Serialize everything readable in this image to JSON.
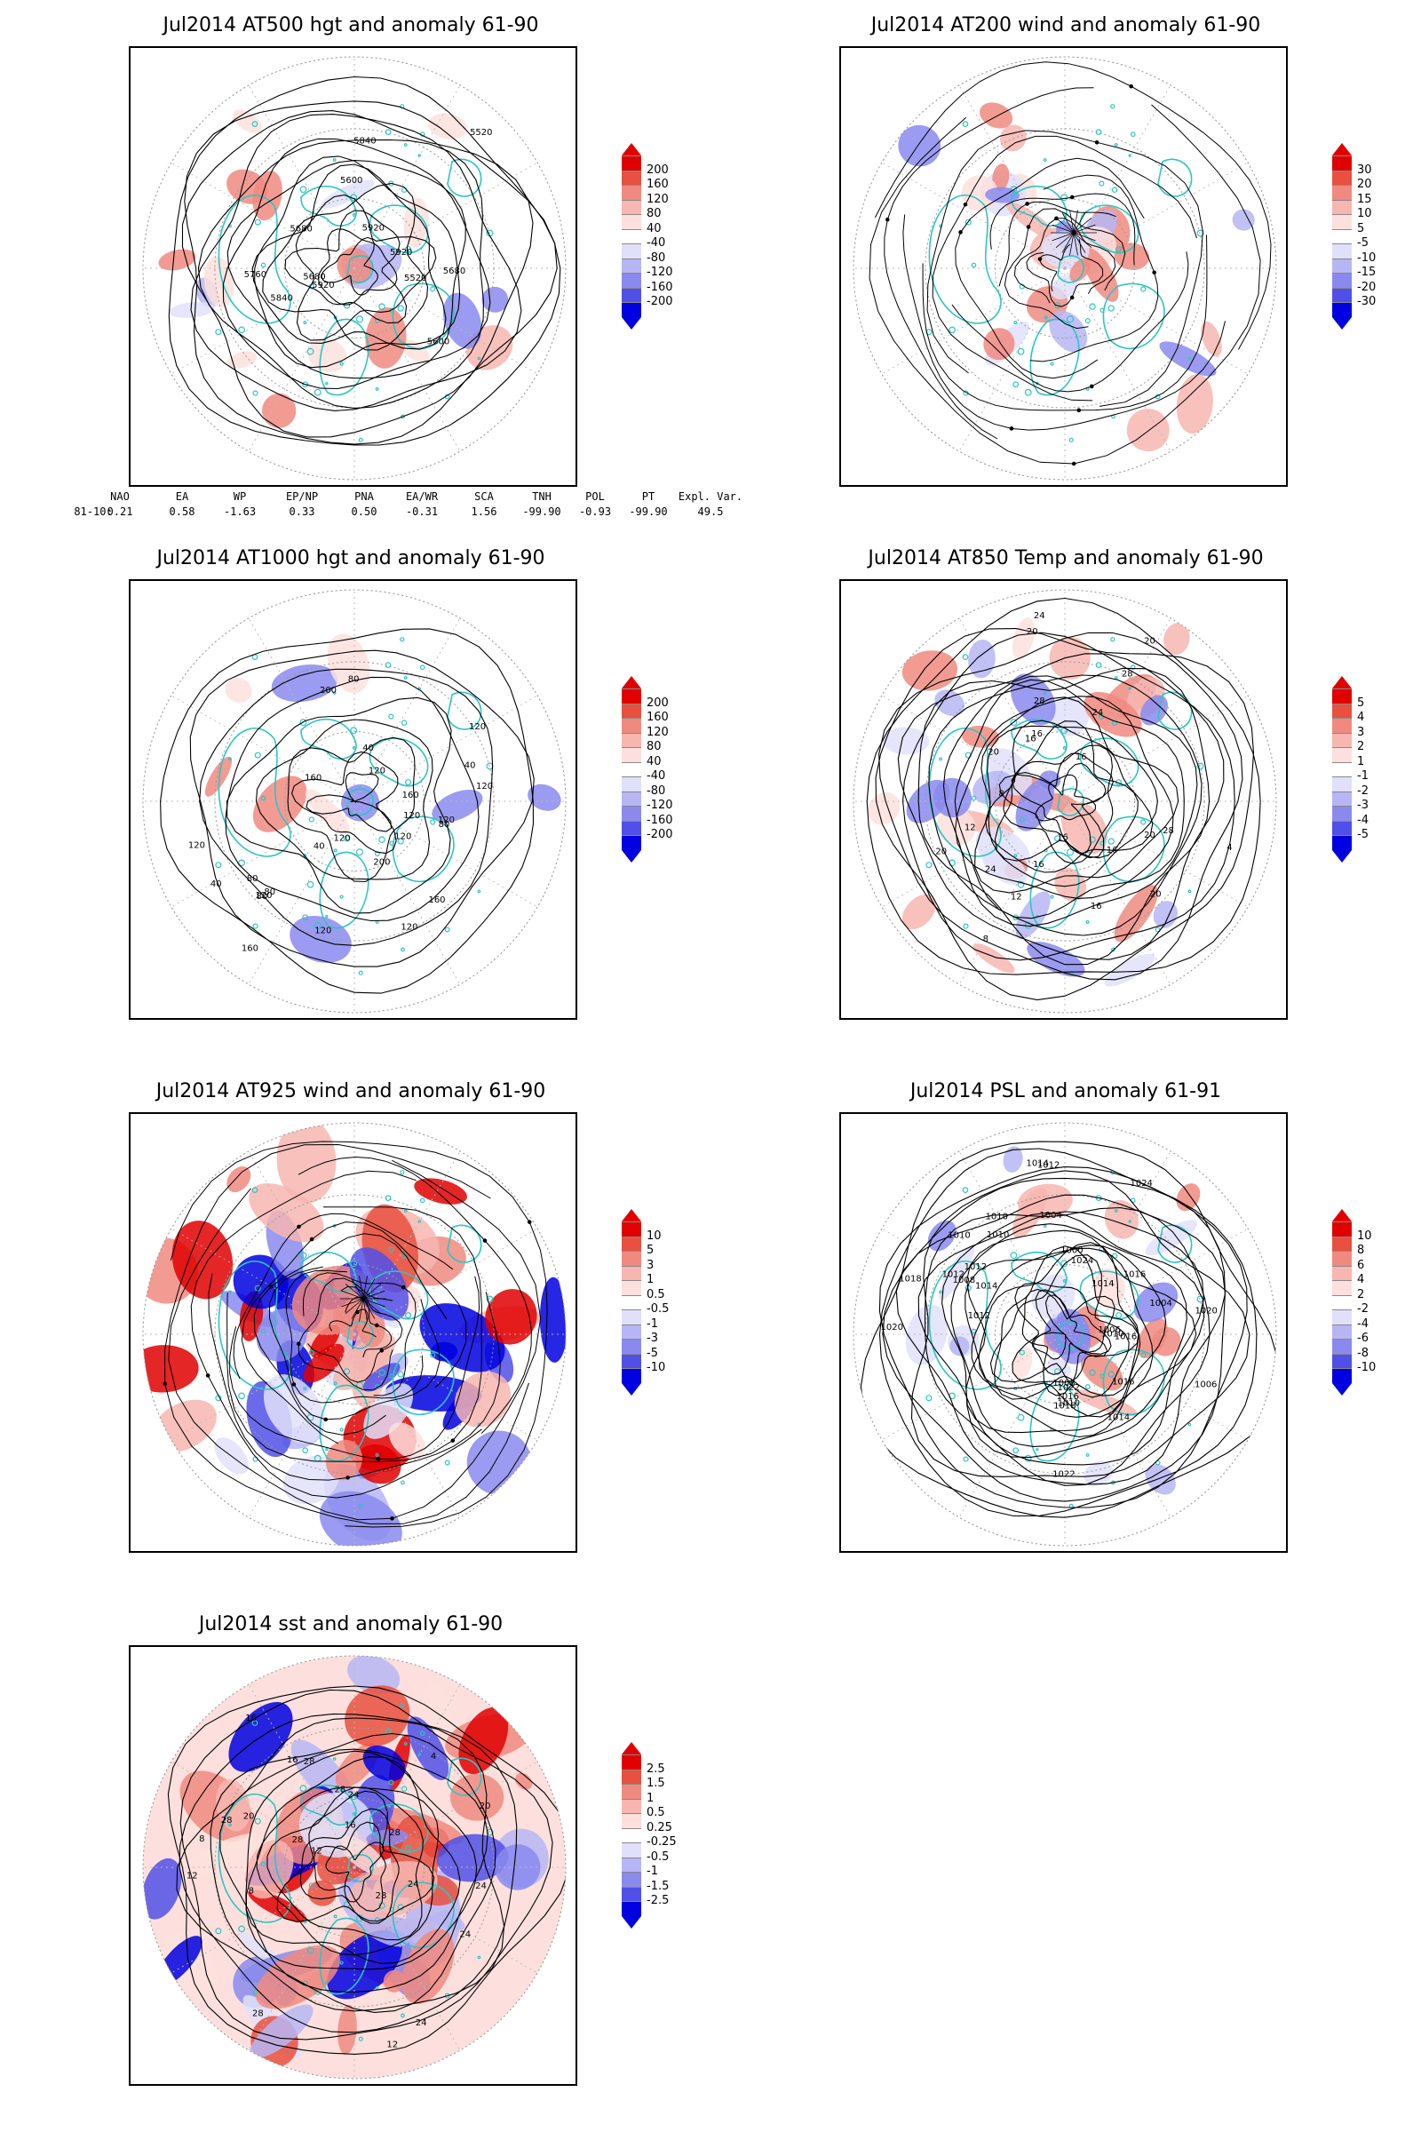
{
  "panels": [
    {
      "id": "p1",
      "title": "Jul2014 AT500 hgt and anomaly 61-90",
      "colorbar": [
        "200",
        "160",
        "120",
        "80",
        "40",
        "-40",
        "-80",
        "-120",
        "-160",
        "-200"
      ],
      "contour_labels": [
        "5680",
        "5680",
        "5600",
        "5920",
        "5520",
        "5520",
        "5600",
        "5680",
        "5840",
        "5920",
        "5760",
        "5840",
        "5920"
      ]
    },
    {
      "id": "p2",
      "title": "Jul2014 AT200 wind and anomaly 61-90",
      "colorbar": [
        "30",
        "20",
        "15",
        "10",
        "5",
        "-5",
        "-10",
        "-15",
        "-20",
        "-30"
      ],
      "contour_labels": []
    },
    {
      "id": "p3",
      "title": "Jul2014 AT1000 hgt and anomaly 61-90",
      "colorbar": [
        "200",
        "160",
        "120",
        "80",
        "40",
        "-40",
        "-80",
        "-120",
        "-160",
        "-200"
      ],
      "contour_labels": [
        "120",
        "160",
        "160",
        "200",
        "120",
        "80",
        "120",
        "40",
        "40",
        "40",
        "120",
        "40",
        "160",
        "200",
        "80",
        "120",
        "80",
        "120",
        "160",
        "120",
        "80",
        "120",
        "80",
        "120",
        "120",
        "120"
      ]
    },
    {
      "id": "p4",
      "title": "Jul2014 AT850 Temp and anomaly 61-90",
      "colorbar": [
        "5",
        "4",
        "3",
        "2",
        "1",
        "-1",
        "-2",
        "-3",
        "-4",
        "-5"
      ],
      "contour_labels": [
        "16",
        "12",
        "16",
        "20",
        "20",
        "24",
        "8",
        "20",
        "24",
        "28",
        "4",
        "8",
        "16",
        "28",
        "20",
        "12",
        "16",
        "20",
        "24",
        "16",
        "16",
        "28",
        "20",
        "16"
      ]
    },
    {
      "id": "p5",
      "title": "Jul2014 AT925 wind and anomaly 61-90",
      "colorbar": [
        "10",
        "5",
        "3",
        "1",
        "0.5",
        "-0.5",
        "-1",
        "-3",
        "-5",
        "-10"
      ],
      "contour_labels": []
    },
    {
      "id": "p6",
      "title": "Jul2014 PSL and anomaly 61-91",
      "colorbar": [
        "10",
        "8",
        "6",
        "4",
        "2",
        "-2",
        "-4",
        "-6",
        "-8",
        "-10"
      ],
      "contour_labels": [
        "1010",
        "1010",
        "1012",
        "1014",
        "1016",
        "1018",
        "1022",
        "1024",
        "1018",
        "1012",
        "1010",
        "1014",
        "1016",
        "1020",
        "1010",
        "1012",
        "1006",
        "1004",
        "1024",
        "1022",
        "1020",
        "1016",
        "1014",
        "1012",
        "1014",
        "1016",
        "1008",
        "1006",
        "1004",
        "1000",
        "1008",
        "1010"
      ]
    },
    {
      "id": "p7",
      "title": "Jul2014 sst and anomaly 61-90",
      "colorbar": [
        "2.5",
        "1.5",
        "1",
        "0.5",
        "0.25",
        "-0.25",
        "-0.5",
        "-1",
        "-1.5",
        "-2.5"
      ],
      "contour_labels": [
        "28",
        "28",
        "24",
        "20",
        "16",
        "12",
        "28",
        "24",
        "20",
        "16",
        "12",
        "8",
        "4",
        "28",
        "28",
        "24",
        "16",
        "12",
        "8",
        "28",
        "24",
        "28",
        "24"
      ]
    }
  ],
  "indices": {
    "headers": [
      "NAO",
      "EA",
      "WP",
      "EP/NP",
      "PNA",
      "EA/WR",
      "SCA",
      "TNH",
      "POL",
      "PT",
      "Expl. Var."
    ],
    "row_label": "81-10:",
    "values": [
      "0.21",
      "0.58",
      "-1.63",
      "0.33",
      "0.50",
      "-0.31",
      "1.56",
      "-99.90",
      "-0.93",
      "-99.90",
      "49.5"
    ]
  },
  "colors": {
    "coast": "#2ec4c4",
    "contour": "#000000",
    "pos_scale": [
      "#ffffff",
      "#fde0dd",
      "#f7b6b0",
      "#f08a80",
      "#e85040",
      "#e00000"
    ],
    "neg_scale": [
      "#ffffff",
      "#e0e0fa",
      "#b6b6f4",
      "#8a8aee",
      "#5050e8",
      "#0000e0"
    ]
  }
}
